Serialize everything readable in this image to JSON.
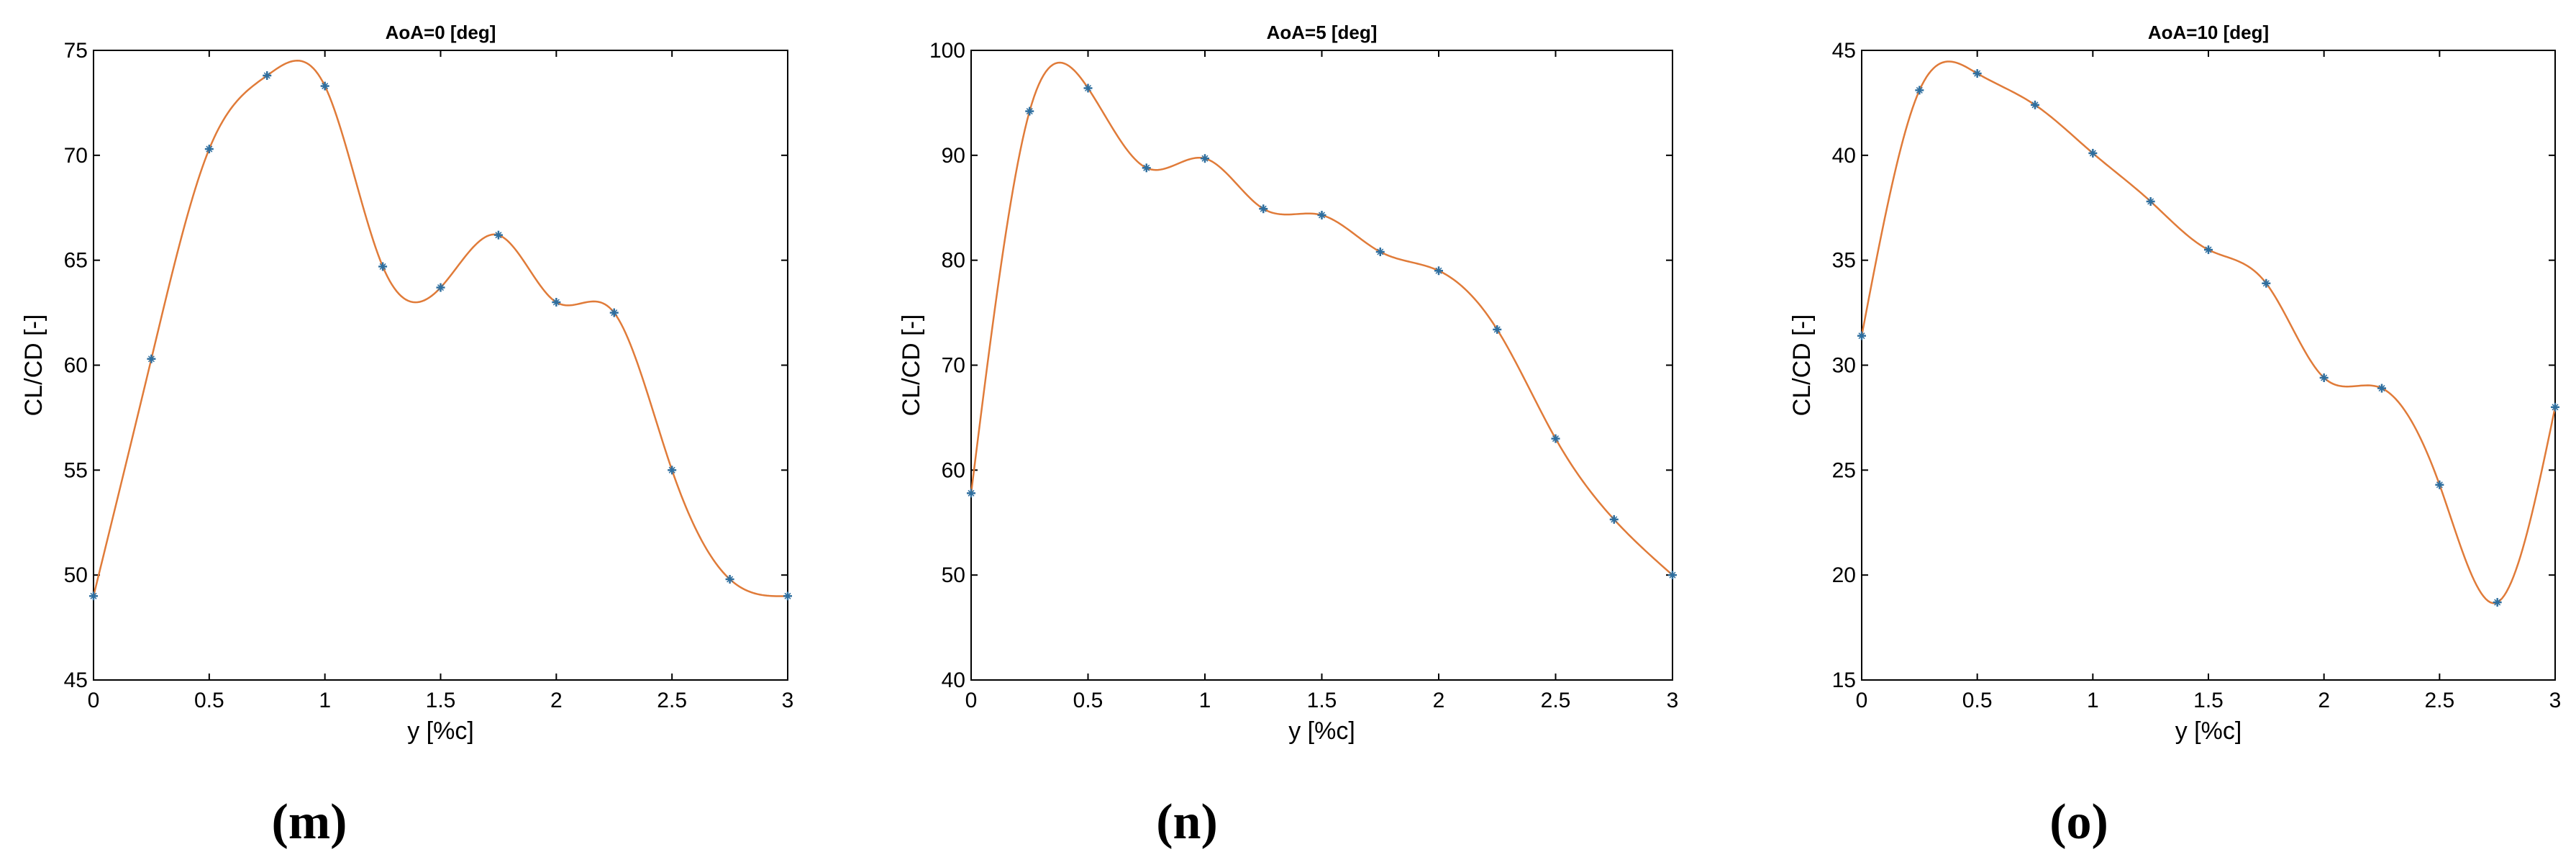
{
  "colors": {
    "line": "#e07b39",
    "marker": "#2f6f9f",
    "axes": "#000000"
  },
  "chart_data": [
    {
      "type": "line",
      "panel_label": "(m)",
      "title": "AoA=0  [deg]",
      "xlabel": "y  [%c]",
      "ylabel": "CL/CD [-]",
      "xlim": [
        0,
        3
      ],
      "ylim": [
        45,
        75
      ],
      "xticks": [
        0,
        0.5,
        1,
        1.5,
        2,
        2.5,
        3
      ],
      "yticks": [
        45,
        50,
        55,
        60,
        65,
        70,
        75
      ],
      "grid": false,
      "x": [
        0,
        0.25,
        0.5,
        0.75,
        1,
        1.25,
        1.5,
        1.75,
        2,
        2.25,
        2.5,
        2.75,
        3
      ],
      "y": [
        49.0,
        60.3,
        70.3,
        73.8,
        73.3,
        64.7,
        63.7,
        66.2,
        63.0,
        62.5,
        55.0,
        49.8,
        49.0
      ]
    },
    {
      "type": "line",
      "panel_label": "(n)",
      "title": "AoA=5  [deg]",
      "xlabel": "y  [%c]",
      "ylabel": "CL/CD [-]",
      "xlim": [
        0,
        3
      ],
      "ylim": [
        40,
        100
      ],
      "xticks": [
        0,
        0.5,
        1,
        1.5,
        2,
        2.5,
        3
      ],
      "yticks": [
        40,
        50,
        60,
        70,
        80,
        90,
        100
      ],
      "grid": false,
      "x": [
        0,
        0.25,
        0.5,
        0.75,
        1,
        1.25,
        1.5,
        1.75,
        2,
        2.25,
        2.5,
        2.75,
        3
      ],
      "y": [
        57.8,
        94.2,
        96.4,
        88.8,
        89.7,
        84.9,
        84.3,
        80.8,
        79.0,
        73.4,
        63.0,
        55.3,
        50.0
      ]
    },
    {
      "type": "line",
      "panel_label": "(o)",
      "title": "AoA=10  [deg]",
      "xlabel": "y  [%c]",
      "ylabel": "CL/CD [-]",
      "xlim": [
        0,
        3
      ],
      "ylim": [
        15,
        45
      ],
      "xticks": [
        0,
        0.5,
        1,
        1.5,
        2,
        2.5,
        3
      ],
      "yticks": [
        15,
        20,
        25,
        30,
        35,
        40,
        45
      ],
      "grid": false,
      "x": [
        0,
        0.25,
        0.5,
        0.75,
        1,
        1.25,
        1.5,
        1.75,
        2,
        2.25,
        2.5,
        2.75,
        3
      ],
      "y": [
        31.4,
        43.1,
        43.9,
        42.4,
        40.1,
        37.8,
        35.5,
        33.9,
        29.4,
        28.9,
        24.3,
        18.7,
        28.0
      ]
    }
  ]
}
